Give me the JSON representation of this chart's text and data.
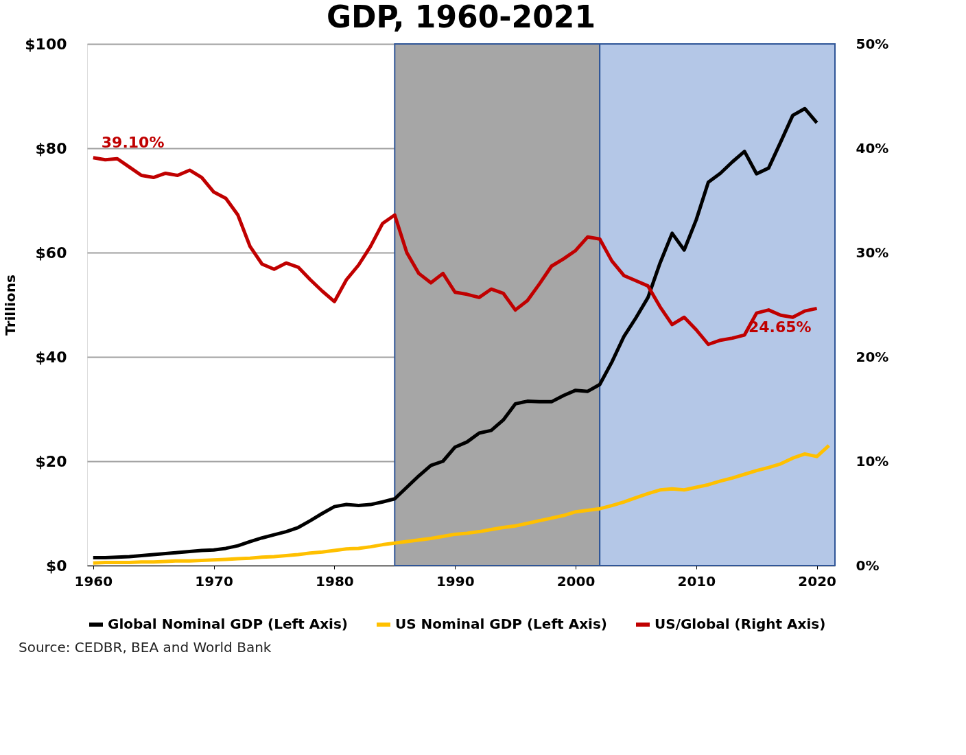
{
  "chart_data": {
    "type": "line",
    "title": "GDP, 1960-2021",
    "ylabel": "Trillions",
    "x": [
      1960,
      1961,
      1962,
      1963,
      1964,
      1965,
      1966,
      1967,
      1968,
      1969,
      1970,
      1971,
      1972,
      1973,
      1974,
      1975,
      1976,
      1977,
      1978,
      1979,
      1980,
      1981,
      1982,
      1983,
      1984,
      1985,
      1986,
      1987,
      1988,
      1989,
      1990,
      1991,
      1992,
      1993,
      1994,
      1995,
      1996,
      1997,
      1998,
      1999,
      2000,
      2001,
      2002,
      2003,
      2004,
      2005,
      2006,
      2007,
      2008,
      2009,
      2010,
      2011,
      2012,
      2013,
      2014,
      2015,
      2016,
      2017,
      2018,
      2019,
      2020,
      2021
    ],
    "series": [
      {
        "name": "Global Nominal GDP (Left Axis)",
        "color": "#000000",
        "values": [
          1.5,
          1.5,
          1.6,
          1.7,
          1.9,
          2.1,
          2.3,
          2.5,
          2.7,
          2.9,
          3.0,
          3.3,
          3.8,
          4.6,
          5.3,
          5.9,
          6.5,
          7.3,
          8.6,
          10.0,
          11.3,
          11.7,
          11.5,
          11.7,
          12.2,
          12.8,
          15.0,
          17.2,
          19.2,
          20.0,
          22.7,
          23.7,
          25.4,
          25.9,
          27.9,
          31.0,
          31.5,
          31.4,
          31.4,
          32.6,
          33.6,
          33.4,
          34.7,
          39.0,
          43.9,
          47.5,
          51.4,
          58.0,
          63.7,
          60.5,
          66.3,
          73.5,
          75.2,
          77.4,
          79.4,
          75.1,
          76.2,
          81.2,
          86.3,
          87.6,
          84.9,
          null
        ]
      },
      {
        "name": "US Nominal GDP (Left Axis)",
        "color": "#ffc000",
        "values": [
          0.5,
          0.6,
          0.6,
          0.6,
          0.7,
          0.7,
          0.8,
          0.9,
          0.9,
          1.0,
          1.1,
          1.2,
          1.3,
          1.4,
          1.6,
          1.7,
          1.9,
          2.1,
          2.4,
          2.6,
          2.9,
          3.2,
          3.3,
          3.6,
          4.0,
          4.3,
          4.6,
          4.9,
          5.2,
          5.6,
          6.0,
          6.2,
          6.5,
          6.9,
          7.3,
          7.6,
          8.1,
          8.6,
          9.1,
          9.6,
          10.3,
          10.6,
          10.9,
          11.5,
          12.2,
          13.0,
          13.8,
          14.5,
          14.7,
          14.5,
          15.0,
          15.5,
          16.2,
          16.8,
          17.5,
          18.2,
          18.8,
          19.5,
          20.6,
          21.4,
          20.9,
          23.0
        ]
      },
      {
        "name": "US/Global (Right Axis)",
        "color": "#c00000",
        "axis": "y2",
        "value_labels": [
          "39.10%",
          null,
          null,
          null,
          null,
          null,
          null,
          null,
          null,
          null,
          null,
          null,
          null,
          null,
          null,
          null,
          null,
          null,
          null,
          null,
          null,
          null,
          null,
          null,
          null,
          null,
          null,
          null,
          null,
          null,
          null,
          null,
          null,
          null,
          null,
          null,
          null,
          null,
          null,
          null,
          null,
          null,
          null,
          null,
          null,
          null,
          null,
          null,
          null,
          null,
          null,
          null,
          null,
          null,
          null,
          null,
          null,
          null,
          null,
          null,
          "24.65%",
          null
        ],
        "values": [
          39.1,
          38.9,
          39.0,
          38.2,
          37.4,
          37.2,
          37.6,
          37.4,
          37.9,
          37.2,
          35.8,
          35.2,
          33.6,
          30.6,
          28.9,
          28.4,
          29.0,
          28.6,
          27.4,
          26.3,
          25.3,
          27.4,
          28.8,
          30.6,
          32.8,
          33.6,
          30.0,
          28.0,
          27.1,
          28.0,
          26.2,
          26.0,
          25.7,
          26.5,
          26.1,
          24.5,
          25.4,
          27.0,
          28.7,
          29.4,
          30.2,
          31.5,
          31.3,
          29.2,
          27.8,
          27.3,
          26.8,
          24.8,
          23.1,
          23.8,
          22.6,
          21.2,
          21.6,
          21.8,
          22.1,
          24.2,
          24.5,
          24.0,
          23.8,
          24.4,
          24.65,
          null
        ]
      }
    ],
    "xlim": [
      1959.5,
      2021.5
    ],
    "xticks": [
      1960,
      1970,
      1980,
      1990,
      2000,
      2010,
      2020
    ],
    "ylim": [
      0,
      100
    ],
    "yticks": [
      {
        "value": 0,
        "label": "$0"
      },
      {
        "value": 20,
        "label": "$20"
      },
      {
        "value": 40,
        "label": "$40"
      },
      {
        "value": 60,
        "label": "$60"
      },
      {
        "value": 80,
        "label": "$80"
      },
      {
        "value": 100,
        "label": "$100"
      }
    ],
    "y2lim": [
      0,
      50
    ],
    "y2ticks": [
      {
        "value": 0,
        "label": "0%"
      },
      {
        "value": 10,
        "label": "10%"
      },
      {
        "value": 20,
        "label": "20%"
      },
      {
        "value": 30,
        "label": "30%"
      },
      {
        "value": 40,
        "label": "40%"
      },
      {
        "value": 50,
        "label": "50%"
      }
    ],
    "bands": [
      {
        "axis": "x",
        "from": 1985,
        "to": 2002,
        "color": "#a6a6a6"
      },
      {
        "axis": "x",
        "from": 2002,
        "to": 2021.5,
        "color": "#b4c7e7"
      }
    ],
    "annotations": [
      "Source: CEDBR, BEA and World Bank"
    ],
    "grid": "y",
    "legend": "bottom",
    "line_style": "solid",
    "marker": "none"
  }
}
